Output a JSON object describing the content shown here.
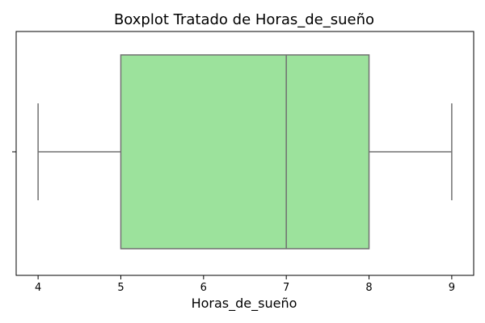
{
  "chart_data": {
    "type": "boxplot",
    "orientation": "horizontal",
    "title": "Boxplot Tratado de Horas_de_sueño",
    "xlabel": "Horas_de_sueño",
    "ylabel": "",
    "xlim": [
      3.735,
      9.265
    ],
    "xticks": [
      4,
      5,
      6,
      7,
      8,
      9
    ],
    "xtick_labels": [
      "4",
      "5",
      "6",
      "7",
      "8",
      "9"
    ],
    "grid": false,
    "stats": {
      "whisker_low": 4,
      "q1": 5,
      "median": 7,
      "q3": 8,
      "whisker_high": 9
    },
    "colors": {
      "box_fill": "#9ce29c",
      "line": "#707070",
      "axes": "#000000"
    }
  }
}
